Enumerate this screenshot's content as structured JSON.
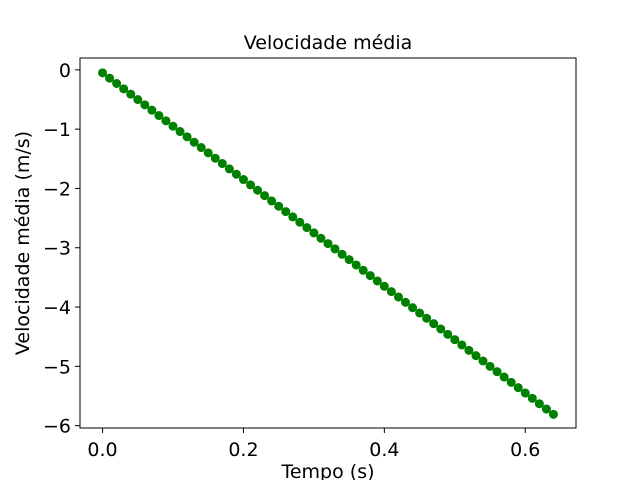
{
  "chart_data": {
    "type": "scatter",
    "title": "Velocidade média",
    "xlabel": "Tempo (s)",
    "ylabel": "Velocidade média (m/s)",
    "xlim": [
      -0.032,
      0.672
    ],
    "ylim": [
      -6.04,
      0.2
    ],
    "xticks": [
      0.0,
      0.2,
      0.4,
      0.6
    ],
    "xtick_labels": [
      "0.0",
      "0.2",
      "0.4",
      "0.6"
    ],
    "yticks": [
      0,
      -1,
      -2,
      -3,
      -4,
      -5,
      -6
    ],
    "ytick_labels": [
      "0",
      "−1",
      "−2",
      "−3",
      "−4",
      "−5",
      "−6"
    ],
    "grid": false,
    "legend": false,
    "marker_color": "#008000",
    "series": [
      {
        "x": [
          0.0,
          0.01,
          0.02,
          0.03,
          0.04,
          0.05,
          0.06,
          0.07,
          0.08,
          0.09,
          0.1,
          0.11,
          0.12,
          0.13,
          0.14,
          0.15,
          0.16,
          0.17,
          0.18,
          0.19,
          0.2,
          0.21,
          0.22,
          0.23,
          0.24,
          0.25,
          0.26,
          0.27,
          0.28,
          0.29,
          0.3,
          0.31,
          0.32,
          0.33,
          0.34,
          0.35,
          0.36,
          0.37,
          0.38,
          0.39,
          0.4,
          0.41,
          0.42,
          0.43,
          0.44,
          0.45,
          0.46,
          0.47,
          0.48,
          0.49,
          0.5,
          0.51,
          0.52,
          0.53,
          0.54,
          0.55,
          0.56,
          0.57,
          0.58,
          0.59,
          0.6,
          0.61,
          0.62,
          0.63,
          0.64
        ],
        "y": [
          -0.05,
          -0.14,
          -0.23,
          -0.32,
          -0.41,
          -0.5,
          -0.59,
          -0.68,
          -0.77,
          -0.86,
          -0.95,
          -1.04,
          -1.13,
          -1.22,
          -1.31,
          -1.4,
          -1.49,
          -1.58,
          -1.67,
          -1.76,
          -1.85,
          -1.94,
          -2.03,
          -2.12,
          -2.21,
          -2.3,
          -2.39,
          -2.48,
          -2.57,
          -2.66,
          -2.75,
          -2.84,
          -2.93,
          -3.02,
          -3.11,
          -3.2,
          -3.29,
          -3.38,
          -3.47,
          -3.56,
          -3.65,
          -3.74,
          -3.83,
          -3.92,
          -4.01,
          -4.1,
          -4.19,
          -4.28,
          -4.37,
          -4.46,
          -4.55,
          -4.64,
          -4.73,
          -4.82,
          -4.91,
          -5.0,
          -5.09,
          -5.18,
          -5.27,
          -5.36,
          -5.45,
          -5.54,
          -5.63,
          -5.72,
          -5.81
        ]
      }
    ]
  }
}
